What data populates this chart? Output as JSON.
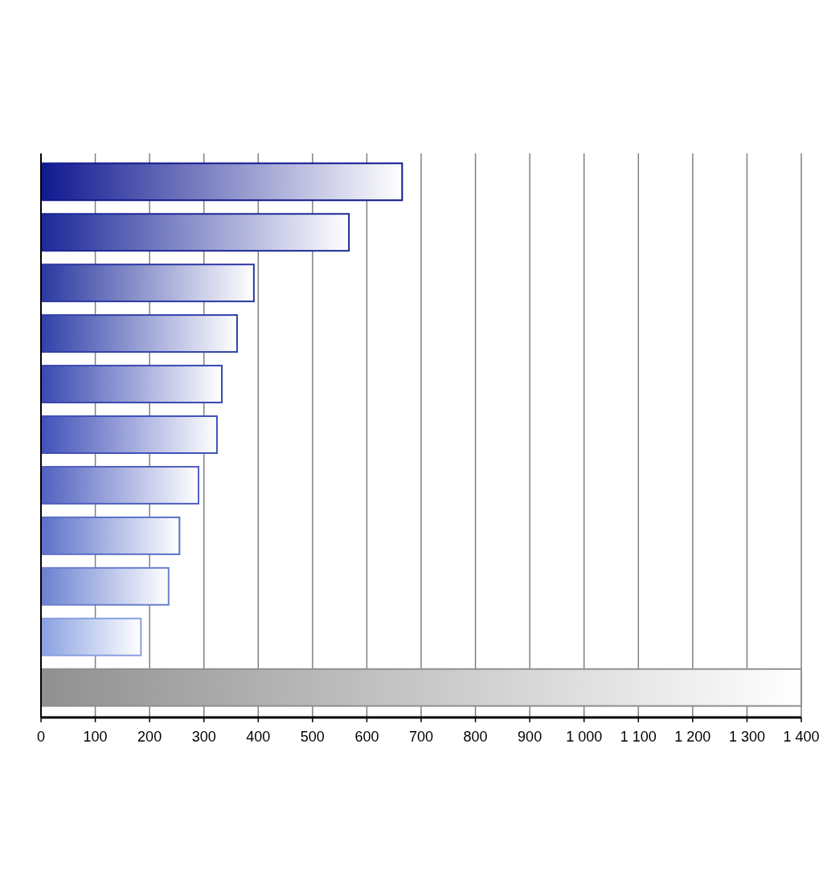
{
  "chart_data": {
    "type": "bar",
    "orientation": "horizontal",
    "categories": [
      null,
      null,
      null,
      null,
      null,
      null,
      null,
      null,
      null,
      null,
      null
    ],
    "values": [
      665,
      567,
      392,
      361,
      333,
      324,
      290,
      255,
      235,
      184,
      1400
    ],
    "colors": [
      "#101890",
      "#1c2898",
      "#2a38a0",
      "#3040a8",
      "#3848b0",
      "#4050b8",
      "#5060c0",
      "#5a70c8",
      "#6a80d0",
      "#88a0e0",
      "#909090"
    ],
    "xlim": [
      0,
      1400
    ],
    "xticks": [
      0,
      100,
      200,
      300,
      400,
      500,
      600,
      700,
      800,
      900,
      {
        "value": 1000,
        "label": "1 000"
      },
      {
        "value": 1100,
        "label": "1 100"
      },
      {
        "value": 1200,
        "label": "1 200"
      },
      {
        "value": 1300,
        "label": "1 300"
      },
      {
        "value": 1400,
        "label": "1 400"
      }
    ],
    "grid": "x"
  }
}
